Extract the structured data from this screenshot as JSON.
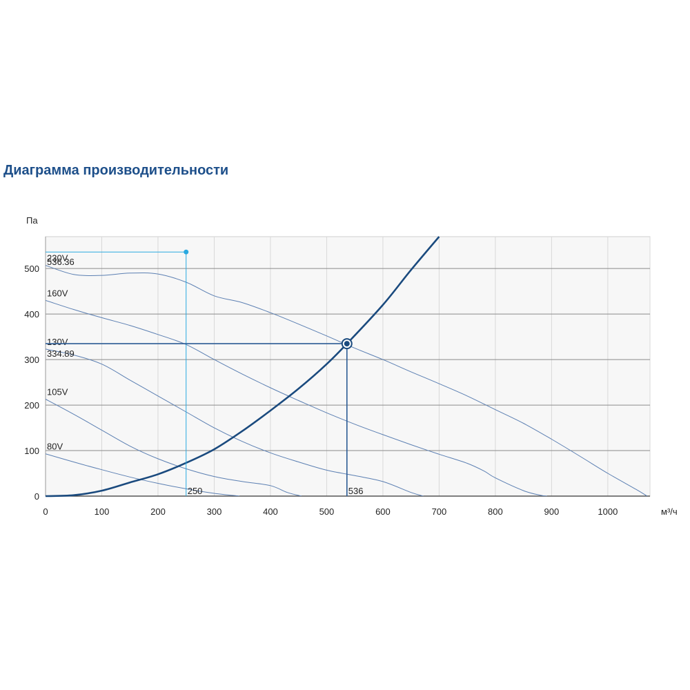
{
  "page": {
    "title": "Диаграмма производительности"
  },
  "chart_data": {
    "type": "line",
    "xlabel": "м³/ч",
    "ylabel": "Па",
    "xlim": [
      0,
      1075
    ],
    "ylim": [
      0,
      570
    ],
    "xticks": [
      0,
      100,
      200,
      300,
      400,
      500,
      600,
      700,
      800,
      900,
      1000
    ],
    "yticks": [
      0,
      100,
      200,
      300,
      400,
      500
    ],
    "grid": true,
    "colors": {
      "fan_curves": "#5b7fb2",
      "system_curve": "#1a4a7e",
      "guide_cyan": "#29a9e0",
      "guide_dark": "#2a5a94"
    },
    "series": [
      {
        "name": "230V",
        "x": [
          0,
          50,
          100,
          150,
          200,
          250,
          300,
          350,
          400,
          450,
          500,
          550,
          600,
          650,
          700,
          750,
          800,
          850,
          900,
          950,
          1000,
          1050,
          1070
        ],
        "y": [
          507,
          487,
          485,
          490,
          488,
          470,
          440,
          425,
          403,
          378,
          352,
          325,
          300,
          273,
          247,
          220,
          190,
          160,
          125,
          88,
          50,
          15,
          0
        ]
      },
      {
        "name": "160V",
        "x": [
          0,
          50,
          100,
          150,
          200,
          250,
          300,
          350,
          400,
          450,
          500,
          550,
          600,
          650,
          700,
          750,
          780,
          800,
          850,
          880,
          892
        ],
        "y": [
          430,
          410,
          392,
          375,
          355,
          333,
          300,
          268,
          238,
          210,
          183,
          158,
          135,
          113,
          92,
          72,
          55,
          40,
          12,
          2,
          0
        ]
      },
      {
        "name": "130V",
        "x": [
          0,
          50,
          100,
          150,
          200,
          250,
          300,
          350,
          400,
          450,
          500,
          550,
          600,
          650,
          672
        ],
        "y": [
          323,
          310,
          290,
          255,
          220,
          185,
          150,
          120,
          95,
          75,
          57,
          45,
          32,
          8,
          0
        ]
      },
      {
        "name": "105V",
        "x": [
          0,
          50,
          100,
          150,
          200,
          250,
          300,
          350,
          400,
          430,
          455
        ],
        "y": [
          213,
          180,
          145,
          110,
          82,
          60,
          43,
          32,
          23,
          8,
          0
        ]
      },
      {
        "name": "80V",
        "x": [
          0,
          50,
          100,
          150,
          200,
          250,
          300,
          345
        ],
        "y": [
          93,
          75,
          58,
          42,
          28,
          16,
          6,
          0
        ]
      },
      {
        "name": "",
        "type": "system",
        "x": [
          0,
          50,
          100,
          150,
          200,
          250,
          300,
          350,
          400,
          450,
          500,
          536,
          600,
          650,
          700
        ],
        "y": [
          0,
          2,
          12,
          30,
          48,
          73,
          103,
          143,
          188,
          236,
          290,
          334.89,
          420,
          497,
          570
        ]
      }
    ],
    "annotations": [
      {
        "x": 250,
        "y": 536.36,
        "label": "536.36",
        "xlabel": "250",
        "color": "#29a9e0"
      },
      {
        "x": 536,
        "y": 334.89,
        "label": "334.89",
        "xlabel": "536",
        "color": "#2a5a94"
      }
    ]
  }
}
